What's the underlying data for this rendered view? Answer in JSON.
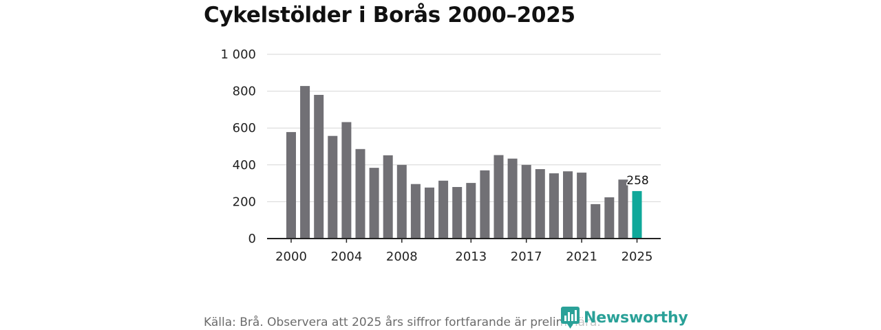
{
  "chart_data": {
    "type": "bar",
    "title": "Cykelstölder i Borås 2000–2025",
    "xlabel": "",
    "ylabel": "",
    "ylim": [
      0,
      1000
    ],
    "yticks": [
      0,
      200,
      400,
      600,
      800,
      1000
    ],
    "ytick_labels": [
      "0",
      "200",
      "400",
      "600",
      "800",
      "1 000"
    ],
    "xtick_labels": [
      "2000",
      "2004",
      "2008",
      "2013",
      "2017",
      "2021",
      "2025"
    ],
    "categories": [
      "2000",
      "2001",
      "2002",
      "2003",
      "2004",
      "2005",
      "2006",
      "2007",
      "2008",
      "2009",
      "2010",
      "2011",
      "2012",
      "2013",
      "2014",
      "2015",
      "2016",
      "2017",
      "2018",
      "2019",
      "2020",
      "2021",
      "2022",
      "2023",
      "2024",
      "2025"
    ],
    "values": [
      578,
      828,
      780,
      557,
      632,
      486,
      384,
      452,
      400,
      296,
      277,
      314,
      280,
      302,
      370,
      453,
      434,
      400,
      377,
      354,
      365,
      358,
      187,
      224,
      320,
      258
    ],
    "highlight_index": 25,
    "highlight_label": "258",
    "grid": true,
    "colors": {
      "bar": "#717075",
      "highlight": "#0fa89a",
      "grid": "#d6d6d6",
      "axis": "#222222"
    }
  },
  "footer": {
    "source": "Källa: Brå. Observera att 2025 års siffror fortfarande är preliminära."
  },
  "brand": {
    "name": "Newsworthy",
    "icon": "newsworthy-logo-icon",
    "color": "#2aa198"
  }
}
